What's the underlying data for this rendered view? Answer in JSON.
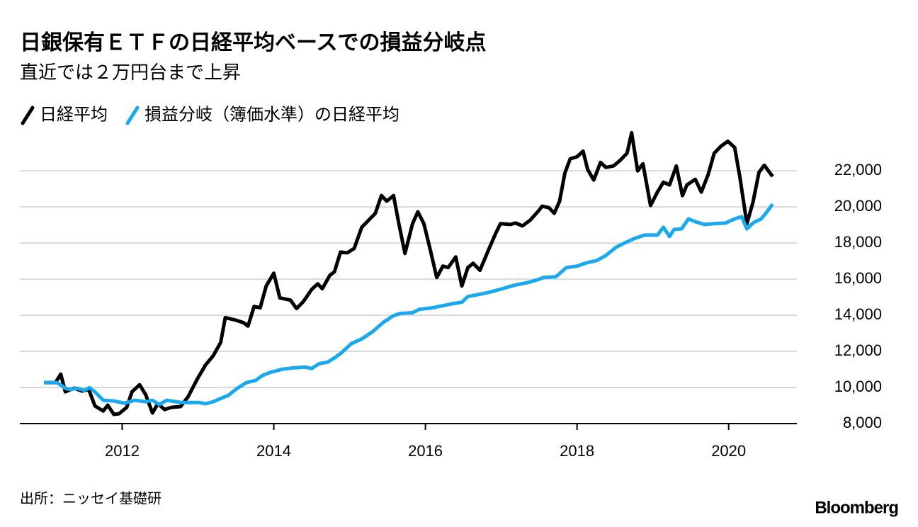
{
  "chart_data": {
    "type": "line",
    "title": "日銀保有ＥＴＦの日経平均ベースでの損益分岐点",
    "subtitle": "直近では２万円台まで上昇",
    "source": "出所：ニッセイ基礎研",
    "brand": "Bloomberg",
    "xlim": [
      2010.65,
      2020.9
    ],
    "xticks": [
      2012,
      2014,
      2016,
      2018,
      2020
    ],
    "ylim": [
      8000,
      24400
    ],
    "yticks": [
      {
        "value": 8000,
        "label": "8,000"
      },
      {
        "value": 10000,
        "label": "10,000"
      },
      {
        "value": 12000,
        "label": "12,000"
      },
      {
        "value": 14000,
        "label": "14,000"
      },
      {
        "value": 16000,
        "label": "16,000"
      },
      {
        "value": 18000,
        "label": "18,000"
      },
      {
        "value": 20000,
        "label": "20,000"
      },
      {
        "value": 22000,
        "label": "22,000"
      }
    ],
    "grid": true,
    "series": [
      {
        "name": "日経平均",
        "color": "#000000",
        "x": [
          2010.97,
          2011.12,
          2011.19,
          2011.25,
          2011.37,
          2011.47,
          2011.56,
          2011.64,
          2011.75,
          2011.81,
          2011.89,
          2011.96,
          2012.06,
          2012.13,
          2012.23,
          2012.31,
          2012.4,
          2012.47,
          2012.56,
          2012.65,
          2012.77,
          2012.87,
          2012.99,
          2013.1,
          2013.2,
          2013.3,
          2013.36,
          2013.48,
          2013.6,
          2013.66,
          2013.74,
          2013.82,
          2013.9,
          2014.0,
          2014.08,
          2014.22,
          2014.3,
          2014.39,
          2014.5,
          2014.58,
          2014.64,
          2014.74,
          2014.8,
          2014.88,
          2014.97,
          2015.06,
          2015.16,
          2015.25,
          2015.34,
          2015.42,
          2015.49,
          2015.58,
          2015.65,
          2015.73,
          2015.83,
          2015.9,
          2015.98,
          2016.06,
          2016.15,
          2016.23,
          2016.3,
          2016.4,
          2016.48,
          2016.56,
          2016.63,
          2016.72,
          2016.84,
          2016.93,
          2016.99,
          2017.12,
          2017.19,
          2017.28,
          2017.38,
          2017.49,
          2017.54,
          2017.63,
          2017.7,
          2017.77,
          2017.84,
          2017.91,
          2018.0,
          2018.08,
          2018.14,
          2018.22,
          2018.31,
          2018.38,
          2018.48,
          2018.56,
          2018.66,
          2018.72,
          2018.8,
          2018.87,
          2018.97,
          2019.06,
          2019.14,
          2019.22,
          2019.31,
          2019.39,
          2019.45,
          2019.56,
          2019.64,
          2019.73,
          2019.81,
          2019.9,
          2019.99,
          2020.08,
          2020.15,
          2020.24,
          2020.32,
          2020.4,
          2020.47,
          2020.58
        ],
        "values": [
          10270,
          10270,
          10740,
          9760,
          9960,
          9800,
          9880,
          8980,
          8700,
          9020,
          8510,
          8550,
          8900,
          9760,
          10150,
          9600,
          8590,
          9100,
          8780,
          8900,
          8940,
          9490,
          10460,
          11250,
          11750,
          12500,
          13870,
          13750,
          13590,
          13400,
          14490,
          14410,
          15620,
          16330,
          14960,
          14840,
          14370,
          14760,
          15430,
          15740,
          15470,
          16210,
          16410,
          17500,
          17460,
          17700,
          18870,
          19260,
          19650,
          20630,
          20320,
          20630,
          19070,
          17420,
          19070,
          19730,
          19070,
          17700,
          16090,
          16720,
          16640,
          17230,
          15620,
          16640,
          16880,
          16490,
          17700,
          18560,
          19070,
          19030,
          19110,
          18950,
          19260,
          19770,
          20040,
          19960,
          19650,
          20320,
          21880,
          22660,
          22780,
          23090,
          22080,
          21490,
          22470,
          22190,
          22270,
          22550,
          22980,
          24110,
          22000,
          22390,
          20080,
          20820,
          21370,
          21220,
          22270,
          20630,
          21220,
          21530,
          20820,
          21800,
          22980,
          23370,
          23640,
          23290,
          21610,
          19070,
          20240,
          21920,
          22310,
          21690
        ]
      },
      {
        "name": "損益分岐（簿価水準）の日経平均",
        "color": "#1aa9ee",
        "x": [
          2010.97,
          2011.14,
          2011.25,
          2011.32,
          2011.4,
          2011.5,
          2011.57,
          2011.64,
          2011.75,
          2011.89,
          2012.03,
          2012.17,
          2012.31,
          2012.4,
          2012.49,
          2012.59,
          2012.77,
          2013.01,
          2013.1,
          2013.2,
          2013.31,
          2013.4,
          2013.52,
          2013.64,
          2013.76,
          2013.85,
          2013.96,
          2014.11,
          2014.27,
          2014.41,
          2014.5,
          2014.6,
          2014.71,
          2014.8,
          2014.89,
          2015.02,
          2015.16,
          2015.3,
          2015.44,
          2015.58,
          2015.67,
          2015.83,
          2015.92,
          2016.09,
          2016.23,
          2016.37,
          2016.48,
          2016.56,
          2016.7,
          2016.84,
          2016.98,
          2017.17,
          2017.36,
          2017.49,
          2017.56,
          2017.72,
          2017.86,
          2018.0,
          2018.13,
          2018.26,
          2018.38,
          2018.52,
          2018.63,
          2018.75,
          2018.89,
          2019.06,
          2019.14,
          2019.22,
          2019.28,
          2019.38,
          2019.47,
          2019.56,
          2019.68,
          2019.81,
          2019.96,
          2020.08,
          2020.17,
          2020.24,
          2020.33,
          2020.43,
          2020.49,
          2020.58
        ],
        "values": [
          10270,
          10270,
          9960,
          9880,
          9960,
          9840,
          9990,
          9760,
          9290,
          9250,
          9130,
          9290,
          9210,
          9290,
          9060,
          9290,
          9170,
          9170,
          9100,
          9210,
          9410,
          9560,
          9960,
          10270,
          10390,
          10660,
          10850,
          11010,
          11090,
          11130,
          11050,
          11320,
          11400,
          11640,
          11910,
          12420,
          12690,
          13080,
          13590,
          13980,
          14100,
          14140,
          14330,
          14410,
          14530,
          14650,
          14720,
          15040,
          15150,
          15270,
          15430,
          15660,
          15820,
          15980,
          16090,
          16130,
          16640,
          16720,
          16910,
          17030,
          17310,
          17780,
          18010,
          18240,
          18440,
          18440,
          18870,
          18360,
          18750,
          18790,
          19340,
          19180,
          19030,
          19070,
          19110,
          19340,
          19460,
          18790,
          19140,
          19340,
          19650,
          20160
        ]
      }
    ]
  }
}
